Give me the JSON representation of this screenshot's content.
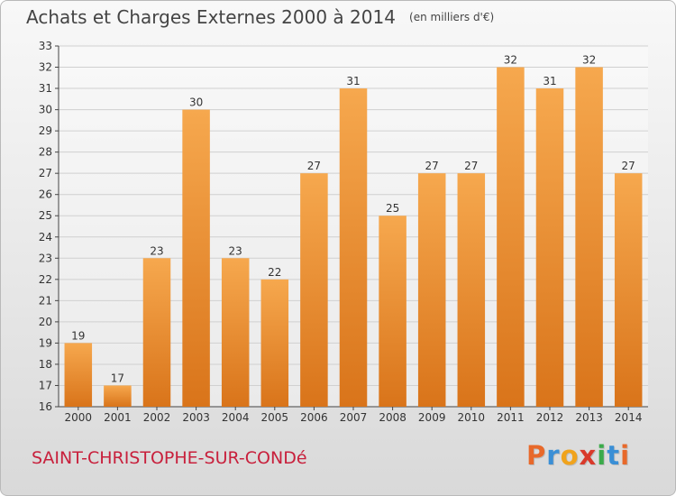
{
  "title": "Achats et Charges Externes 2000 à 2014",
  "unit_label": "(en milliers d'€)",
  "commune": "SAINT-CHRISTOPHE-SUR-CONDé",
  "brand": {
    "letters": [
      "P",
      "r",
      "o",
      "x",
      "i",
      "t",
      "i"
    ],
    "colors": [
      "#e8692a",
      "#3a8fd6",
      "#f0a31c",
      "#d93a2b",
      "#3bab4a",
      "#3a8fd6",
      "#e8692a"
    ]
  },
  "colors": {
    "bar_top": "#f6a84e",
    "bar_bottom": "#d9741a",
    "grid": "#d0d0d0",
    "axis": "#444444",
    "text": "#333333"
  },
  "chart_data": {
    "type": "bar",
    "categories": [
      "2000",
      "2001",
      "2002",
      "2003",
      "2004",
      "2005",
      "2006",
      "2007",
      "2008",
      "2009",
      "2010",
      "2011",
      "2012",
      "2013",
      "2014"
    ],
    "values": [
      19,
      17,
      23,
      30,
      23,
      22,
      27,
      31,
      25,
      27,
      27,
      32,
      31,
      32,
      27
    ],
    "data_labels": [
      "19",
      "17",
      "23",
      "30",
      "23",
      "22",
      "27",
      "31",
      "25",
      "27",
      "27",
      "32",
      "31",
      "32",
      "27"
    ],
    "yticks": [
      "16",
      "17",
      "18",
      "19",
      "20",
      "21",
      "22",
      "23",
      "24",
      "25",
      "26",
      "27",
      "28",
      "29",
      "30",
      "31",
      "32",
      "33"
    ],
    "ylim": [
      16,
      33
    ],
    "grid": true,
    "legend": "none"
  }
}
